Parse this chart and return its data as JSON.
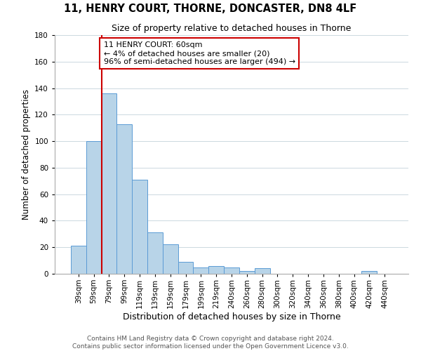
{
  "title": "11, HENRY COURT, THORNE, DONCASTER, DN8 4LF",
  "subtitle": "Size of property relative to detached houses in Thorne",
  "xlabel": "Distribution of detached houses by size in Thorne",
  "ylabel": "Number of detached properties",
  "bar_labels": [
    "39sqm",
    "59sqm",
    "79sqm",
    "99sqm",
    "119sqm",
    "139sqm",
    "159sqm",
    "179sqm",
    "199sqm",
    "219sqm",
    "240sqm",
    "260sqm",
    "280sqm",
    "300sqm",
    "320sqm",
    "340sqm",
    "360sqm",
    "380sqm",
    "400sqm",
    "420sqm",
    "440sqm"
  ],
  "bar_heights": [
    21,
    100,
    136,
    113,
    71,
    31,
    22,
    9,
    5,
    6,
    5,
    2,
    4,
    0,
    0,
    0,
    0,
    0,
    0,
    2,
    0
  ],
  "bar_color": "#b8d4e8",
  "bar_edge_color": "#5b9bd5",
  "property_line_color": "#cc0000",
  "ylim": [
    0,
    180
  ],
  "yticks": [
    0,
    20,
    40,
    60,
    80,
    100,
    120,
    140,
    160,
    180
  ],
  "annotation_title": "11 HENRY COURT: 60sqm",
  "annotation_line1": "← 4% of detached houses are smaller (20)",
  "annotation_line2": "96% of semi-detached houses are larger (494) →",
  "annotation_box_color": "#ffffff",
  "annotation_box_edge": "#cc0000",
  "footer_line1": "Contains HM Land Registry data © Crown copyright and database right 2024.",
  "footer_line2": "Contains public sector information licensed under the Open Government Licence v3.0.",
  "bg_color": "#ffffff",
  "grid_color": "#ccd8e0",
  "title_fontsize": 10.5,
  "subtitle_fontsize": 9,
  "ylabel_fontsize": 8.5,
  "xlabel_fontsize": 9,
  "tick_fontsize": 7.5,
  "annot_fontsize": 8,
  "footer_fontsize": 6.5
}
